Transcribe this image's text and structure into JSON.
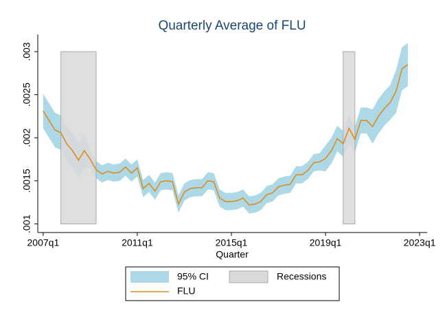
{
  "chart_data": {
    "type": "line",
    "title": "Quarterly Average of FLU",
    "x_label": "Quarter",
    "x": [
      2007,
      2007.25,
      2007.5,
      2007.75,
      2008,
      2008.25,
      2008.5,
      2008.75,
      2009,
      2009.25,
      2009.5,
      2009.75,
      2010,
      2010.25,
      2010.5,
      2010.75,
      2011,
      2011.25,
      2011.5,
      2011.75,
      2012,
      2012.25,
      2012.5,
      2012.75,
      2013,
      2013.25,
      2013.5,
      2013.75,
      2014,
      2014.25,
      2014.5,
      2014.75,
      2015,
      2015.25,
      2015.5,
      2015.75,
      2016,
      2016.25,
      2016.5,
      2016.75,
      2017,
      2017.25,
      2017.5,
      2017.75,
      2018,
      2018.25,
      2018.5,
      2018.75,
      2019,
      2019.25,
      2019.5,
      2019.75,
      2020,
      2020.25,
      2020.5,
      2020.75,
      2021,
      2021.25,
      2021.5,
      2021.75,
      2022,
      2022.25,
      2022.5
    ],
    "series": [
      {
        "name": "95% CI",
        "color": "#add8e6",
        "lower": [
          0.00211,
          0.002,
          0.00189,
          0.00186,
          0.00173,
          0.00165,
          0.00154,
          0.00165,
          0.00165,
          0.00153,
          0.00148,
          0.00151,
          0.00149,
          0.0015,
          0.00156,
          0.00149,
          0.00155,
          0.00131,
          0.00137,
          0.00128,
          0.00139,
          0.0014,
          0.00139,
          0.00113,
          0.00127,
          0.00131,
          0.00132,
          0.00132,
          0.0014,
          0.00139,
          0.0012,
          0.00116,
          0.00116,
          0.00117,
          0.0012,
          0.00112,
          0.00113,
          0.00116,
          0.00124,
          0.00126,
          0.00133,
          0.00135,
          0.00136,
          0.00147,
          0.00147,
          0.00152,
          0.00161,
          0.00162,
          0.00161,
          0.0017,
          0.00184,
          0.00178,
          0.00196,
          0.00183,
          0.00205,
          0.00205,
          0.00193,
          0.00205,
          0.00214,
          0.00221,
          0.00229,
          0.00255,
          0.0026
        ],
        "upper": [
          0.00251,
          0.0024,
          0.00229,
          0.00226,
          0.00213,
          0.00205,
          0.00194,
          0.00205,
          0.00185,
          0.00173,
          0.00168,
          0.00171,
          0.00169,
          0.0017,
          0.00176,
          0.00169,
          0.00175,
          0.00151,
          0.00157,
          0.00148,
          0.00159,
          0.0016,
          0.00159,
          0.00133,
          0.00147,
          0.00151,
          0.00152,
          0.00152,
          0.0016,
          0.00159,
          0.0014,
          0.00136,
          0.00136,
          0.00137,
          0.0014,
          0.00132,
          0.00133,
          0.00136,
          0.00144,
          0.00146,
          0.00153,
          0.00155,
          0.00156,
          0.00167,
          0.00167,
          0.00172,
          0.00181,
          0.00182,
          0.00191,
          0.002,
          0.00214,
          0.00208,
          0.00226,
          0.00213,
          0.00235,
          0.00235,
          0.00233,
          0.00245,
          0.00254,
          0.00261,
          0.00279,
          0.00305,
          0.0031
        ]
      },
      {
        "name": "FLU",
        "color": "#e08a1e",
        "values": [
          0.00231,
          0.0022,
          0.00209,
          0.00206,
          0.00193,
          0.00185,
          0.00174,
          0.00185,
          0.00175,
          0.00163,
          0.00158,
          0.00161,
          0.00159,
          0.0016,
          0.00166,
          0.00159,
          0.00165,
          0.00141,
          0.00147,
          0.00138,
          0.00149,
          0.0015,
          0.00149,
          0.00123,
          0.00137,
          0.00141,
          0.00142,
          0.00142,
          0.0015,
          0.00149,
          0.0013,
          0.00126,
          0.00126,
          0.00127,
          0.0013,
          0.00122,
          0.00123,
          0.00126,
          0.00134,
          0.00136,
          0.00143,
          0.00145,
          0.00146,
          0.00157,
          0.00157,
          0.00162,
          0.00171,
          0.00172,
          0.00176,
          0.00185,
          0.00199,
          0.00193,
          0.00211,
          0.00198,
          0.0022,
          0.0022,
          0.00213,
          0.00225,
          0.00234,
          0.00241,
          0.00254,
          0.0028,
          0.00285
        ]
      }
    ],
    "recessions": {
      "name": "Recessions",
      "color": "#d9d9d9",
      "periods": [
        [
          2007.75,
          2009.25
        ],
        [
          2019.75,
          2020.25
        ]
      ],
      "range": [
        0.001,
        0.003
      ]
    },
    "xlim": [
      2006.77,
      2023.32
    ],
    "xticks": [
      {
        "value": 2007,
        "label": "2007q1"
      },
      {
        "value": 2011,
        "label": "2011q1"
      },
      {
        "value": 2015,
        "label": "2015q1"
      },
      {
        "value": 2019,
        "label": "2019q1"
      },
      {
        "value": 2023,
        "label": "2023q1"
      }
    ],
    "ylim": [
      0.0009,
      0.0032
    ],
    "yticks": [
      {
        "value": 0.001,
        "label": ".001"
      },
      {
        "value": 0.0015,
        "label": ".0015"
      },
      {
        "value": 0.002,
        "label": ".002"
      },
      {
        "value": 0.0025,
        "label": ".0025"
      },
      {
        "value": 0.003,
        "label": ".003"
      }
    ],
    "grid": false
  }
}
